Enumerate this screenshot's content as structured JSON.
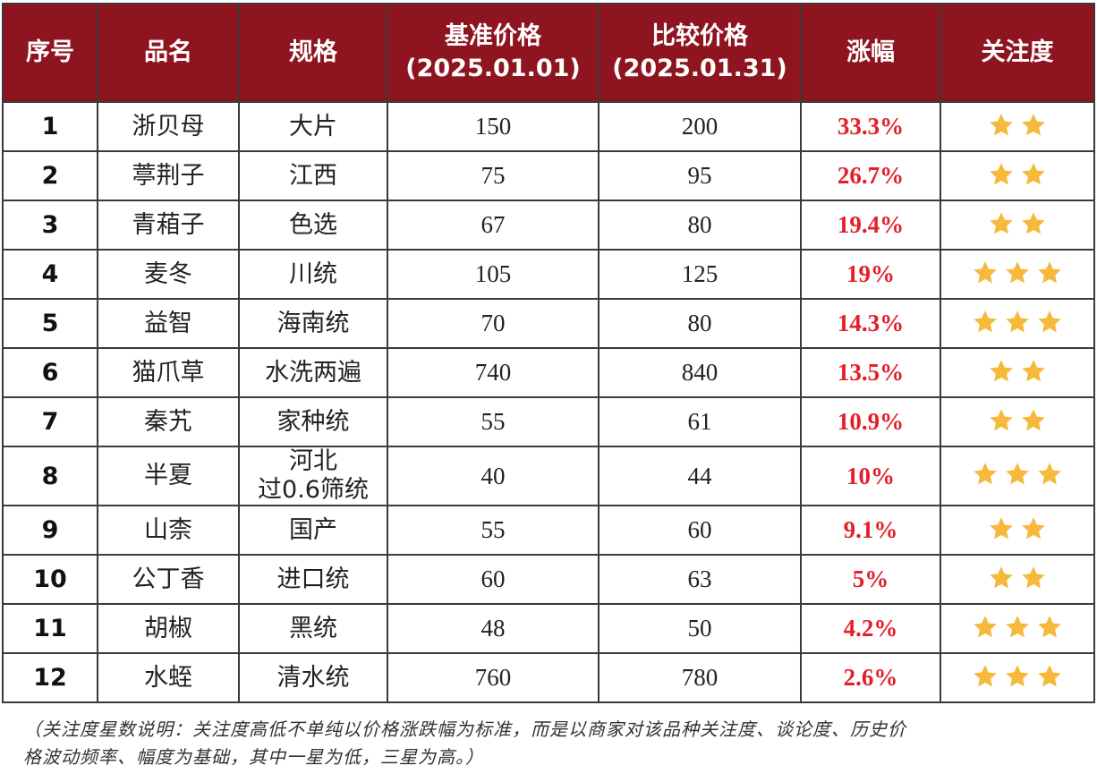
{
  "table": {
    "headers": {
      "no": "序号",
      "name": "品名",
      "spec": "规格",
      "base_line1": "基准价格",
      "base_line2": "(2025.01.01)",
      "cmp_line1": "比较价格",
      "cmp_line2": "(2025.01.31)",
      "change": "涨幅",
      "attention": "关注度"
    },
    "rows": [
      {
        "no": "1",
        "name": "浙贝母",
        "spec_line1": "大片",
        "spec_line2": "",
        "base": "150",
        "cmp": "200",
        "change": "33.3%",
        "stars": 2
      },
      {
        "no": "2",
        "name": "葶荆子",
        "spec_line1": "江西",
        "spec_line2": "",
        "base": "75",
        "cmp": "95",
        "change": "26.7%",
        "stars": 2
      },
      {
        "no": "3",
        "name": "青葙子",
        "spec_line1": "色选",
        "spec_line2": "",
        "base": "67",
        "cmp": "80",
        "change": "19.4%",
        "stars": 2
      },
      {
        "no": "4",
        "name": "麦冬",
        "spec_line1": "川统",
        "spec_line2": "",
        "base": "105",
        "cmp": "125",
        "change": "19%",
        "stars": 3
      },
      {
        "no": "5",
        "name": "益智",
        "spec_line1": "海南统",
        "spec_line2": "",
        "base": "70",
        "cmp": "80",
        "change": "14.3%",
        "stars": 3
      },
      {
        "no": "6",
        "name": "猫爪草",
        "spec_line1": "水洗两遍",
        "spec_line2": "",
        "base": "740",
        "cmp": "840",
        "change": "13.5%",
        "stars": 2
      },
      {
        "no": "7",
        "name": "秦艽",
        "spec_line1": "家种统",
        "spec_line2": "",
        "base": "55",
        "cmp": "61",
        "change": "10.9%",
        "stars": 2
      },
      {
        "no": "8",
        "name": "半夏",
        "spec_line1": "河北",
        "spec_line2": "过0.6筛统",
        "base": "40",
        "cmp": "44",
        "change": "10%",
        "stars": 3
      },
      {
        "no": "9",
        "name": "山柰",
        "spec_line1": "国产",
        "spec_line2": "",
        "base": "55",
        "cmp": "60",
        "change": "9.1%",
        "stars": 2
      },
      {
        "no": "10",
        "name": "公丁香",
        "spec_line1": "进口统",
        "spec_line2": "",
        "base": "60",
        "cmp": "63",
        "change": "5%",
        "stars": 2
      },
      {
        "no": "11",
        "name": "胡椒",
        "spec_line1": "黑统",
        "spec_line2": "",
        "base": "48",
        "cmp": "50",
        "change": "4.2%",
        "stars": 3
      },
      {
        "no": "12",
        "name": "水蛭",
        "spec_line1": "清水统",
        "spec_line2": "",
        "base": "760",
        "cmp": "780",
        "change": "2.6%",
        "stars": 3
      }
    ]
  },
  "note": {
    "line1": "（关注度星数说明：关注度高低不单纯以价格涨跌幅为标准，而是以商家对该品种关注度、谈论度、历史价",
    "line2": "格波动频率、幅度为基础，其中一星为低，三星为高。）"
  },
  "colors": {
    "header_bg": "#8e1520",
    "header_text": "#ffffff",
    "change_text": "#e3202a",
    "star": "#f6b93b",
    "border": "#3a3a3a"
  },
  "icons": {
    "star": "star-icon"
  }
}
